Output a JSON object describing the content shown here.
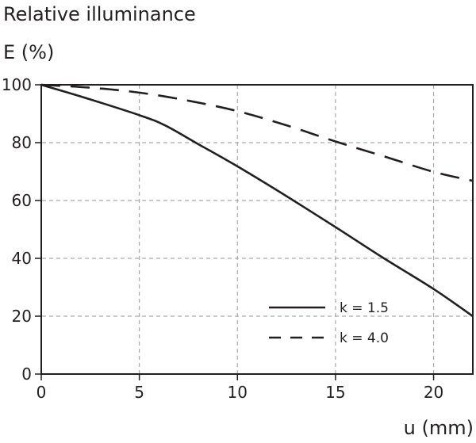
{
  "chart_data": {
    "type": "line",
    "title": "Relative illuminance",
    "ylabel": "E (%)",
    "xlabel": "u (mm)",
    "xlim": [
      0,
      22
    ],
    "ylim": [
      0,
      100
    ],
    "xticks": [
      "0",
      "5",
      "10",
      "15",
      "20"
    ],
    "yticks": [
      "0",
      "20",
      "40",
      "60",
      "80",
      "100"
    ],
    "grid": true,
    "legend_position": "bottom-right",
    "series": [
      {
        "name": "k = 1.5",
        "style": "solid",
        "x": [
          0,
          2,
          5,
          6.3,
          8,
          10,
          12.5,
          15,
          17.4,
          20,
          22
        ],
        "y": [
          100,
          96,
          89.5,
          86,
          79.5,
          71.8,
          61.5,
          50.8,
          40.3,
          29.4,
          20
        ]
      },
      {
        "name": "k = 4.0",
        "style": "dashed",
        "x": [
          0,
          2.5,
          5,
          7.5,
          10,
          12.5,
          15,
          17.5,
          20,
          22
        ],
        "y": [
          100,
          99,
          97.3,
          94.5,
          90.9,
          86,
          80.4,
          75.2,
          69.9,
          66.8
        ]
      }
    ],
    "color": "#231f20",
    "grid_color": "#a7a9ac"
  }
}
